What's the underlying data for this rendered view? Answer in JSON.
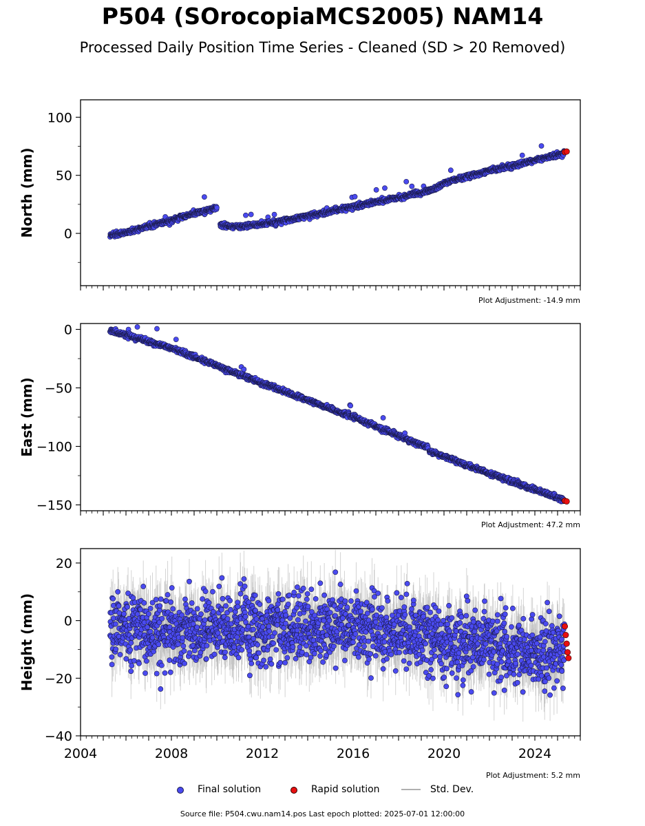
{
  "page": {
    "title": "P504 (SOrocopiaMCS2005) NAM14",
    "subtitle": "Processed Daily Position Time Series - Cleaned (SD > 20 Removed)",
    "footer": "Source file: P504.cwu.nam14.pos  Last epoch plotted: 2025-07-01 12:00:00"
  },
  "legend": {
    "final_label": "Final solution",
    "rapid_label": "Rapid solution",
    "std_label": "Std. Dev."
  },
  "colors": {
    "final": "#4a4af0",
    "final_edge": "#1a1a4a",
    "rapid": "#e81010",
    "std": "#b0b0b0"
  },
  "chart_data": [
    {
      "type": "scatter",
      "ylabel": "North (mm)",
      "adjustment": "Plot Adjustment: -14.9 mm",
      "xlim": [
        2004.0,
        2026.0
      ],
      "ylim": [
        -45,
        115
      ],
      "yticks": [
        0,
        50,
        100
      ],
      "x_tick_labels": [],
      "series": [
        {
          "name": "Final solution",
          "segments": [
            {
              "x": [
                2005.3,
                2006.0,
                2007.0,
                2008.0,
                2009.0,
                2010.0
              ],
              "y": [
                -2,
                1,
                6,
                11,
                17,
                22
              ]
            },
            {
              "x": [
                2010.15,
                2011.0,
                2012.0,
                2013.0,
                2014.0,
                2015.0,
                2016.0,
                2017.0,
                2018.0,
                2019.0,
                2019.4,
                2020.0,
                2021.0,
                2022.0,
                2023.0,
                2024.0,
                2025.3
              ],
              "y": [
                7,
                6,
                8,
                11,
                15,
                19,
                23,
                27,
                31,
                35,
                37,
                43,
                49,
                54,
                58,
                63,
                69
              ]
            }
          ]
        },
        {
          "name": "Rapid solution",
          "x": [
            2025.32,
            2025.4
          ],
          "y": [
            70,
            70.5
          ]
        }
      ]
    },
    {
      "type": "scatter",
      "ylabel": "East (mm)",
      "adjustment": "Plot Adjustment: 47.2 mm",
      "xlim": [
        2004.0,
        2026.0
      ],
      "ylim": [
        -155,
        5
      ],
      "yticks": [
        0,
        -50,
        -100,
        -150
      ],
      "x_tick_labels": [],
      "series": [
        {
          "name": "Final solution",
          "segments": [
            {
              "x": [
                2005.3,
                2008.0,
                2012.0,
                2016.0,
                2019.3
              ],
              "y": [
                -1,
                -16,
                -46,
                -75,
                -101
              ]
            },
            {
              "x": [
                2019.35,
                2021.0,
                2024.0,
                2025.3
              ],
              "y": [
                -104,
                -116,
                -137,
                -146
              ]
            }
          ]
        },
        {
          "name": "Rapid solution",
          "x": [
            2025.32,
            2025.4
          ],
          "y": [
            -146.5,
            -147
          ]
        }
      ]
    },
    {
      "type": "scatter",
      "ylabel": "Height (mm)",
      "adjustment": "Plot Adjustment: 5.2 mm",
      "xlim": [
        2004.0,
        2026.0
      ],
      "ylim": [
        -40,
        25
      ],
      "yticks": [
        20,
        0,
        -20,
        -40
      ],
      "x_tick_labels": [
        "2004",
        "2008",
        "2012",
        "2016",
        "2020",
        "2024"
      ],
      "series": [
        {
          "name": "Final solution",
          "segments": [
            {
              "x": [
                2005.3,
                2007.0,
                2010.0,
                2013.0,
                2016.0,
                2019.0,
                2020.0,
                2022.0,
                2024.0,
                2025.3
              ],
              "y": [
                -3,
                -4,
                -3,
                -3,
                -2,
                -5,
                -9,
                -8,
                -11,
                -10
              ]
            }
          ],
          "spread_sd": 6
        },
        {
          "name": "Rapid solution",
          "x": [
            2025.32,
            2025.36,
            2025.4,
            2025.44,
            2025.48
          ],
          "y": [
            -2,
            -5,
            -8,
            -11,
            -13
          ]
        }
      ]
    }
  ]
}
